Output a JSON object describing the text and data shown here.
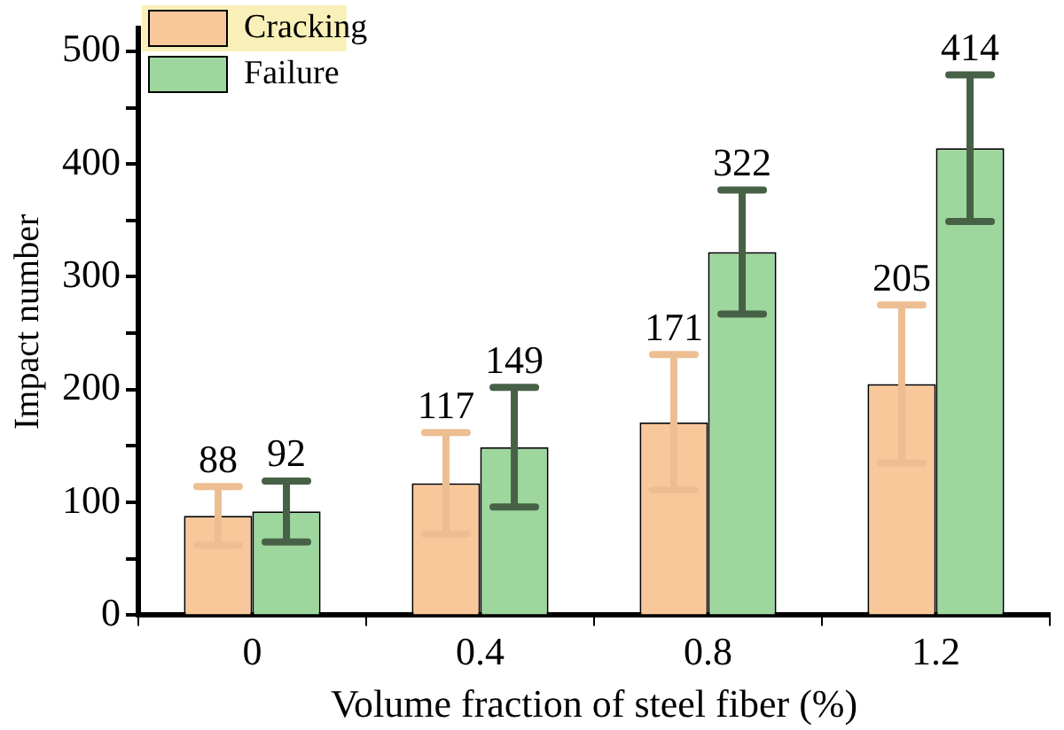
{
  "chart_data": {
    "type": "bar",
    "xlabel": "Volume fraction of steel fiber (%)",
    "ylabel": "Impact number",
    "categories": [
      "0",
      "0.4",
      "0.8",
      "1.2"
    ],
    "series": [
      {
        "name": "Cracking",
        "color": "#f9c89a",
        "values": [
          88,
          117,
          171,
          205
        ],
        "errors": [
          26,
          45,
          60,
          70
        ]
      },
      {
        "name": "Failure",
        "color": "#9ed79e",
        "values": [
          92,
          149,
          322,
          414
        ],
        "errors": [
          27,
          53,
          55,
          65
        ]
      }
    ],
    "ylim": [
      0,
      520
    ],
    "yticks": [
      0,
      {
        "value": 50,
        "label": null
      },
      100,
      {
        "value": 150,
        "label": null
      },
      200,
      {
        "value": 250,
        "label": null
      },
      300,
      {
        "value": 350,
        "label": null
      },
      400,
      {
        "value": 450,
        "label": null
      },
      500
    ],
    "data_labels": true,
    "legend": "top left",
    "grid": false
  }
}
